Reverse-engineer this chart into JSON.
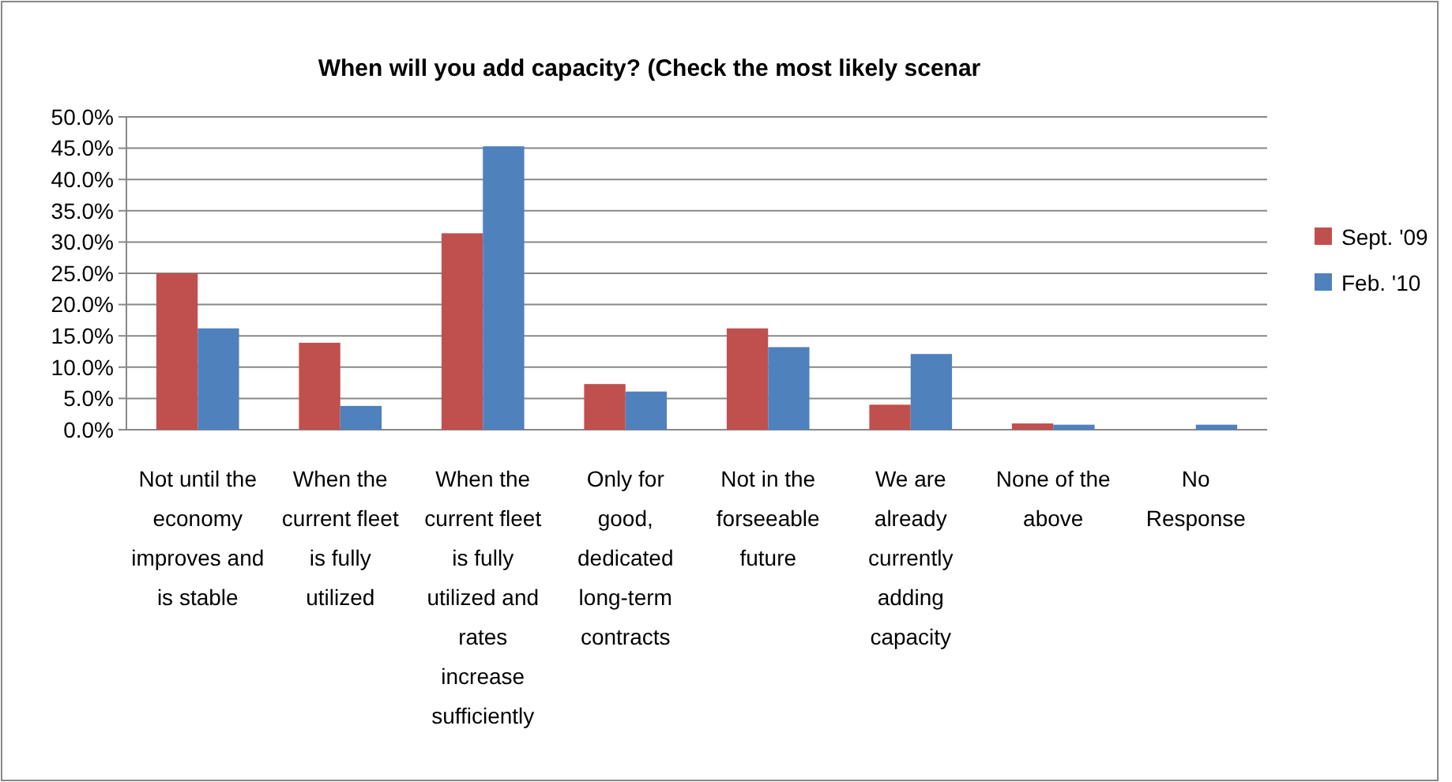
{
  "chart_data": {
    "type": "bar",
    "title": "When will you add capacity? (Check the most likely scenar",
    "categories": [
      "Not until the economy improves and is stable",
      "When the current fleet is fully utilized",
      "When the current fleet is fully utilized and rates increase sufficiently",
      "Only for good, dedicated long-term contracts",
      "Not in the forseeable future",
      "We are already currently adding capacity",
      "None of the above",
      "No Response"
    ],
    "series": [
      {
        "name": "Sept. '09",
        "color": "#c0504d",
        "values": [
          25.0,
          13.9,
          31.4,
          7.3,
          16.2,
          4.0,
          1.0,
          null
        ]
      },
      {
        "name": "Feb. '10",
        "color": "#4f81bd",
        "values": [
          16.2,
          3.8,
          45.3,
          6.1,
          13.2,
          12.1,
          0.8,
          0.8
        ]
      }
    ],
    "ylim": [
      0,
      50
    ],
    "yticks": [
      {
        "value": 0,
        "label": "0.0%"
      },
      {
        "value": 5,
        "label": "5.0%"
      },
      {
        "value": 10,
        "label": "10.0%"
      },
      {
        "value": 15,
        "label": "15.0%"
      },
      {
        "value": 20,
        "label": "20.0%"
      },
      {
        "value": 25,
        "label": "25.0%"
      },
      {
        "value": 30,
        "label": "30.0%"
      },
      {
        "value": 35,
        "label": "35.0%"
      },
      {
        "value": 40,
        "label": "40.0%"
      },
      {
        "value": 45,
        "label": "45.0%"
      },
      {
        "value": 50,
        "label": "50.0%"
      }
    ],
    "grid": "y",
    "legend": "right"
  }
}
